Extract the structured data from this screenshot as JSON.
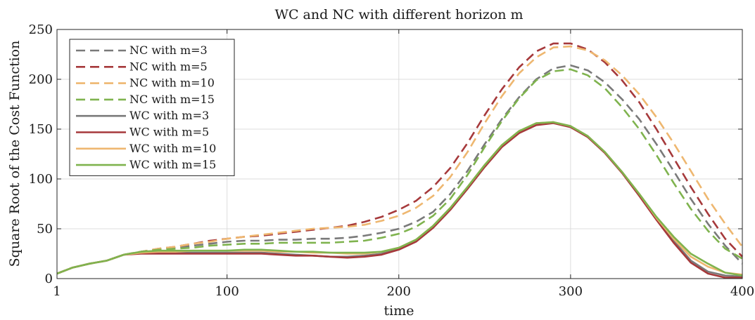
{
  "chart_data": {
    "type": "line",
    "title": "WC and NC with different horizon m",
    "xlabel": "time",
    "ylabel": "Square Root of the Cost Function",
    "xlim": [
      1,
      400
    ],
    "ylim": [
      0,
      250
    ],
    "xticks": [
      1,
      100,
      200,
      300,
      400
    ],
    "yticks": [
      0,
      50,
      100,
      150,
      200,
      250
    ],
    "grid": true,
    "legend_position": "top-left",
    "colors": {
      "m3": "#7a7a7a",
      "m5": "#a6393b",
      "m10": "#eeb770",
      "m15": "#7fb34e"
    },
    "series": [
      {
        "name": "NC with m=3",
        "style": "dashed",
        "color": "#7a7a7a",
        "x": [
          1,
          10,
          20,
          30,
          40,
          50,
          60,
          70,
          80,
          90,
          100,
          110,
          120,
          130,
          140,
          150,
          160,
          170,
          180,
          190,
          200,
          210,
          220,
          230,
          240,
          250,
          260,
          270,
          280,
          290,
          300,
          310,
          320,
          330,
          340,
          350,
          360,
          370,
          380,
          390,
          400
        ],
        "y": [
          5,
          11,
          15,
          18,
          24,
          27,
          29,
          31,
          33,
          35,
          37,
          38,
          38,
          39,
          39,
          40,
          40,
          41,
          43,
          46,
          50,
          57,
          67,
          85,
          108,
          135,
          160,
          182,
          200,
          211,
          214,
          209,
          197,
          180,
          160,
          135,
          108,
          80,
          55,
          33,
          15
        ]
      },
      {
        "name": "NC with m=5",
        "style": "dashed",
        "color": "#a6393b",
        "x": [
          1,
          10,
          20,
          30,
          40,
          50,
          60,
          70,
          80,
          90,
          100,
          110,
          120,
          130,
          140,
          150,
          160,
          170,
          180,
          190,
          200,
          210,
          220,
          230,
          240,
          250,
          260,
          270,
          280,
          290,
          300,
          310,
          320,
          330,
          340,
          350,
          360,
          370,
          380,
          390,
          400
        ],
        "y": [
          5,
          11,
          15,
          18,
          24,
          27,
          30,
          32,
          35,
          38,
          40,
          42,
          43,
          45,
          47,
          49,
          51,
          53,
          57,
          62,
          69,
          78,
          92,
          111,
          136,
          164,
          190,
          212,
          228,
          236,
          236,
          230,
          217,
          199,
          177,
          150,
          121,
          92,
          65,
          40,
          22
        ]
      },
      {
        "name": "NC with m=10",
        "style": "dashed",
        "color": "#eeb770",
        "x": [
          1,
          10,
          20,
          30,
          40,
          50,
          60,
          70,
          80,
          90,
          100,
          110,
          120,
          130,
          140,
          150,
          160,
          170,
          180,
          190,
          200,
          210,
          220,
          230,
          240,
          250,
          260,
          270,
          280,
          290,
          300,
          310,
          320,
          330,
          340,
          350,
          360,
          370,
          380,
          390,
          400
        ],
        "y": [
          5,
          11,
          15,
          18,
          24,
          27,
          30,
          32,
          35,
          37,
          40,
          42,
          44,
          46,
          48,
          50,
          51,
          52,
          54,
          58,
          63,
          71,
          83,
          102,
          127,
          156,
          183,
          206,
          222,
          232,
          233,
          229,
          219,
          204,
          185,
          162,
          136,
          108,
          80,
          55,
          32
        ]
      },
      {
        "name": "NC with m=15",
        "style": "dashed",
        "color": "#7fb34e",
        "x": [
          1,
          10,
          20,
          30,
          40,
          50,
          60,
          70,
          80,
          90,
          100,
          110,
          120,
          130,
          140,
          150,
          160,
          170,
          180,
          190,
          200,
          210,
          220,
          230,
          240,
          250,
          260,
          270,
          280,
          290,
          300,
          310,
          320,
          330,
          340,
          350,
          360,
          370,
          380,
          390,
          400
        ],
        "y": [
          5,
          11,
          15,
          18,
          24,
          27,
          29,
          30,
          31,
          33,
          34,
          35,
          35,
          36,
          36,
          36,
          36,
          37,
          38,
          41,
          45,
          52,
          63,
          80,
          104,
          132,
          158,
          181,
          199,
          208,
          210,
          204,
          191,
          172,
          150,
          124,
          96,
          70,
          48,
          30,
          20
        ]
      },
      {
        "name": "WC with m=3",
        "style": "solid",
        "color": "#7a7a7a",
        "x": [
          1,
          10,
          20,
          30,
          40,
          50,
          60,
          70,
          80,
          90,
          100,
          110,
          120,
          130,
          140,
          150,
          160,
          170,
          180,
          190,
          200,
          210,
          220,
          230,
          240,
          250,
          260,
          270,
          280,
          290,
          300,
          310,
          320,
          330,
          340,
          350,
          360,
          370,
          380,
          390,
          400
        ],
        "y": [
          5,
          11,
          15,
          18,
          24,
          26,
          26,
          26,
          26,
          26,
          26,
          26,
          26,
          25,
          24,
          23,
          22,
          22,
          23,
          25,
          30,
          38,
          52,
          70,
          91,
          113,
          133,
          147,
          155,
          157,
          153,
          143,
          127,
          107,
          84,
          60,
          38,
          18,
          7,
          3,
          2
        ]
      },
      {
        "name": "WC with m=5",
        "style": "solid",
        "color": "#a6393b",
        "x": [
          1,
          10,
          20,
          30,
          40,
          50,
          60,
          70,
          80,
          90,
          100,
          110,
          120,
          130,
          140,
          150,
          160,
          170,
          180,
          190,
          200,
          210,
          220,
          230,
          240,
          250,
          260,
          270,
          280,
          290,
          300,
          310,
          320,
          330,
          340,
          350,
          360,
          370,
          380,
          390,
          400
        ],
        "y": [
          5,
          11,
          15,
          18,
          24,
          25,
          25,
          25,
          25,
          25,
          25,
          25,
          25,
          24,
          23,
          23,
          22,
          21,
          22,
          24,
          29,
          37,
          51,
          69,
          90,
          112,
          132,
          146,
          154,
          156,
          152,
          142,
          126,
          106,
          83,
          59,
          36,
          16,
          5,
          1,
          1
        ]
      },
      {
        "name": "WC with m=10",
        "style": "solid",
        "color": "#eeb770",
        "x": [
          1,
          10,
          20,
          30,
          40,
          50,
          60,
          70,
          80,
          90,
          100,
          110,
          120,
          130,
          140,
          150,
          160,
          170,
          180,
          190,
          200,
          210,
          220,
          230,
          240,
          250,
          260,
          270,
          280,
          290,
          300,
          310,
          320,
          330,
          340,
          350,
          360,
          370,
          380,
          390,
          400
        ],
        "y": [
          5,
          11,
          15,
          18,
          24,
          26,
          27,
          27,
          28,
          28,
          28,
          28,
          28,
          27,
          27,
          26,
          26,
          25,
          25,
          27,
          31,
          39,
          53,
          71,
          92,
          114,
          134,
          148,
          156,
          157,
          153,
          143,
          127,
          107,
          85,
          61,
          40,
          22,
          12,
          6,
          4
        ]
      },
      {
        "name": "WC with m=15",
        "style": "solid",
        "color": "#7fb34e",
        "x": [
          1,
          10,
          20,
          30,
          40,
          50,
          60,
          70,
          80,
          90,
          100,
          110,
          120,
          130,
          140,
          150,
          160,
          170,
          180,
          190,
          200,
          210,
          220,
          230,
          240,
          250,
          260,
          270,
          280,
          290,
          300,
          310,
          320,
          330,
          340,
          350,
          360,
          370,
          380,
          390,
          400
        ],
        "y": [
          5,
          11,
          15,
          18,
          24,
          27,
          28,
          28,
          28,
          28,
          28,
          29,
          29,
          28,
          27,
          27,
          26,
          26,
          26,
          27,
          31,
          39,
          53,
          71,
          92,
          114,
          134,
          148,
          156,
          157,
          153,
          143,
          127,
          107,
          85,
          62,
          42,
          25,
          15,
          6,
          3
        ]
      }
    ]
  }
}
